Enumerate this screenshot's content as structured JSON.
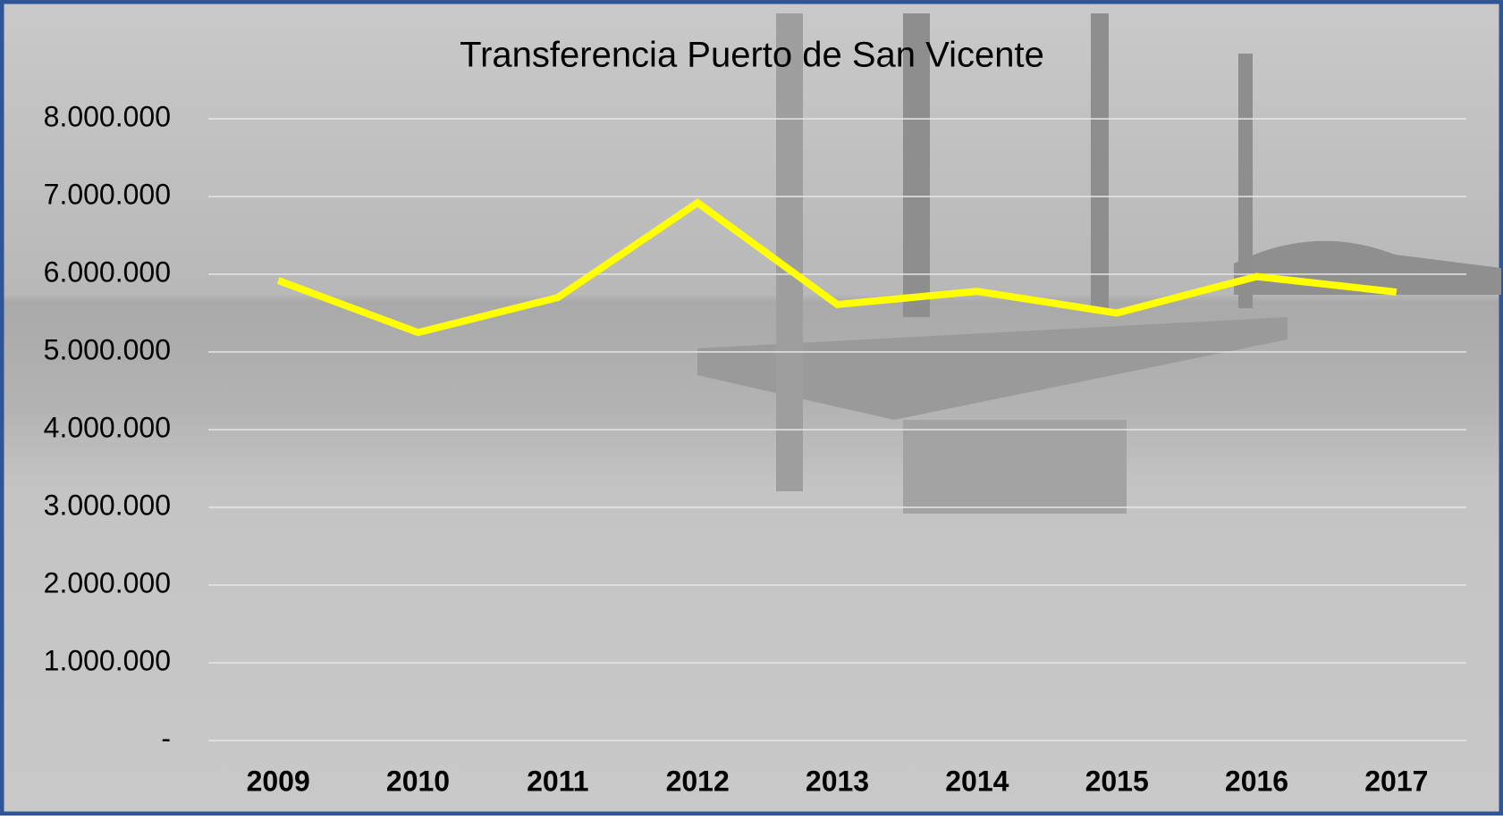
{
  "chart_data": {
    "type": "line",
    "title": "Transferencia Puerto de San Vicente",
    "categories": [
      "2009",
      "2010",
      "2011",
      "2012",
      "2013",
      "2014",
      "2015",
      "2016",
      "2017"
    ],
    "values": [
      5920000,
      5250000,
      5700000,
      6920000,
      5610000,
      5780000,
      5500000,
      5970000,
      5770000
    ],
    "color": "#ffff00",
    "ylim": [
      0,
      8000000
    ],
    "yticks": [
      {
        "value": 0,
        "label": "-"
      },
      {
        "value": 1000000,
        "label": "1.000.000"
      },
      {
        "value": 2000000,
        "label": "2.000.000"
      },
      {
        "value": 3000000,
        "label": "3.000.000"
      },
      {
        "value": 4000000,
        "label": "4.000.000"
      },
      {
        "value": 5000000,
        "label": "5.000.000"
      },
      {
        "value": 6000000,
        "label": "6.000.000"
      },
      {
        "value": 7000000,
        "label": "7.000.000"
      },
      {
        "value": 8000000,
        "label": "8.000.000"
      }
    ],
    "grid": true
  }
}
